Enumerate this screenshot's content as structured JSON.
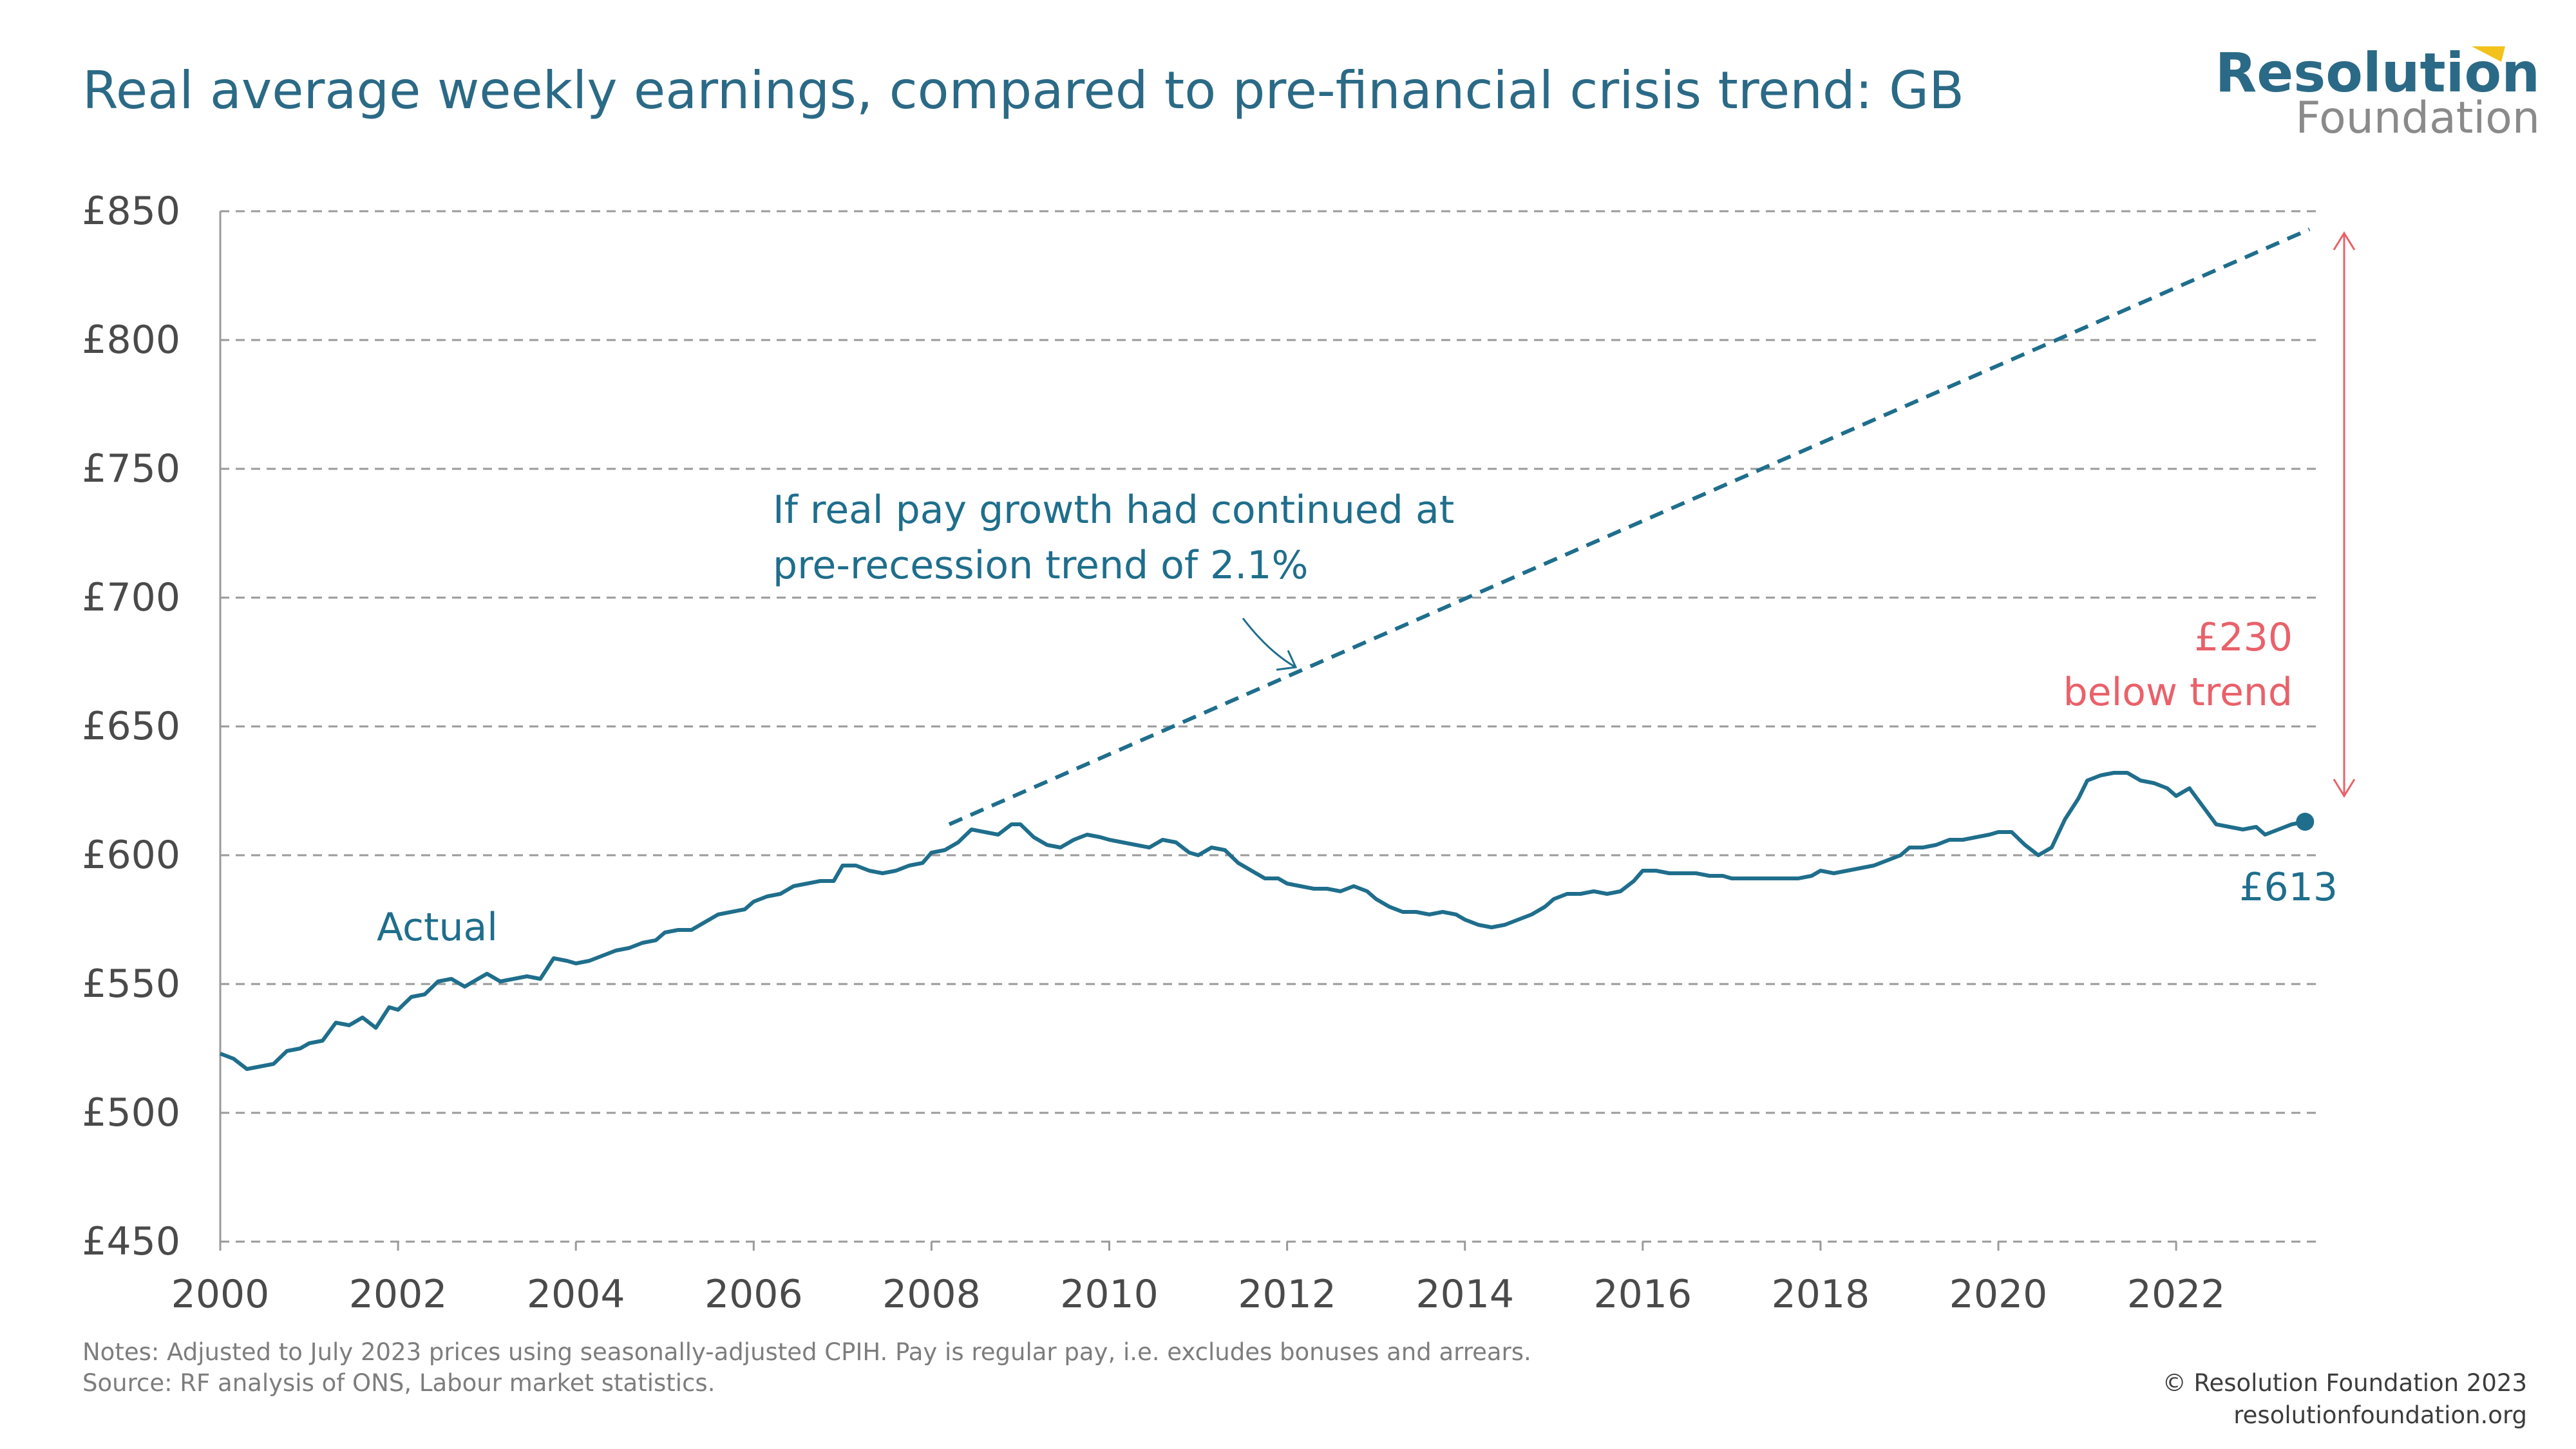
{
  "title": "Real average weekly earnings, compared to pre-financial crisis trend: GB",
  "logo": {
    "line1": "Resolution",
    "line2": "Foundation"
  },
  "colors": {
    "actual": "#1f6e8c",
    "trend": "#1f6e8c",
    "gap": "#e9616a",
    "text": "#2b6a86",
    "grid": "#9a9a9a"
  },
  "chart_data": {
    "type": "line",
    "x_ticks": [
      2000,
      2002,
      2004,
      2006,
      2008,
      2010,
      2012,
      2014,
      2016,
      2018,
      2020,
      2022
    ],
    "x_tick_labels": [
      "2000",
      "2002",
      "2004",
      "2006",
      "2008",
      "2010",
      "2012",
      "2014",
      "2016",
      "2018",
      "2020",
      "2022"
    ],
    "y_ticks": [
      450,
      500,
      550,
      600,
      650,
      700,
      750,
      800,
      850
    ],
    "y_tick_labels": [
      "£450",
      "£500",
      "£550",
      "£600",
      "£650",
      "£700",
      "£750",
      "£800",
      "£850"
    ],
    "xlim": [
      2000,
      2023.6
    ],
    "ylim": [
      450,
      850
    ],
    "grid": "horizontal-dashed",
    "series": [
      {
        "name": "Actual",
        "style": "solid",
        "points": [
          [
            2000.0,
            523
          ],
          [
            2000.15,
            521
          ],
          [
            2000.3,
            517
          ],
          [
            2000.45,
            518
          ],
          [
            2000.6,
            519
          ],
          [
            2000.75,
            524
          ],
          [
            2000.9,
            525
          ],
          [
            2001.0,
            527
          ],
          [
            2001.15,
            528
          ],
          [
            2001.3,
            535
          ],
          [
            2001.45,
            534
          ],
          [
            2001.6,
            537
          ],
          [
            2001.75,
            533
          ],
          [
            2001.9,
            541
          ],
          [
            2002.0,
            540
          ],
          [
            2002.15,
            545
          ],
          [
            2002.3,
            546
          ],
          [
            2002.45,
            551
          ],
          [
            2002.6,
            552
          ],
          [
            2002.75,
            549
          ],
          [
            2002.9,
            552
          ],
          [
            2003.0,
            554
          ],
          [
            2003.15,
            551
          ],
          [
            2003.3,
            552
          ],
          [
            2003.45,
            553
          ],
          [
            2003.6,
            552
          ],
          [
            2003.75,
            560
          ],
          [
            2003.9,
            559
          ],
          [
            2004.0,
            558
          ],
          [
            2004.15,
            559
          ],
          [
            2004.3,
            561
          ],
          [
            2004.45,
            563
          ],
          [
            2004.6,
            564
          ],
          [
            2004.75,
            566
          ],
          [
            2004.9,
            567
          ],
          [
            2005.0,
            570
          ],
          [
            2005.15,
            571
          ],
          [
            2005.3,
            571
          ],
          [
            2005.45,
            574
          ],
          [
            2005.6,
            577
          ],
          [
            2005.75,
            578
          ],
          [
            2005.9,
            579
          ],
          [
            2006.0,
            582
          ],
          [
            2006.15,
            584
          ],
          [
            2006.3,
            585
          ],
          [
            2006.45,
            588
          ],
          [
            2006.6,
            589
          ],
          [
            2006.75,
            590
          ],
          [
            2006.9,
            590
          ],
          [
            2007.0,
            596
          ],
          [
            2007.15,
            596
          ],
          [
            2007.3,
            594
          ],
          [
            2007.45,
            593
          ],
          [
            2007.6,
            594
          ],
          [
            2007.75,
            596
          ],
          [
            2007.9,
            597
          ],
          [
            2008.0,
            601
          ],
          [
            2008.15,
            602
          ],
          [
            2008.3,
            605
          ],
          [
            2008.45,
            610
          ],
          [
            2008.6,
            609
          ],
          [
            2008.75,
            608
          ],
          [
            2008.9,
            612
          ],
          [
            2009.0,
            612
          ],
          [
            2009.15,
            607
          ],
          [
            2009.3,
            604
          ],
          [
            2009.45,
            603
          ],
          [
            2009.6,
            606
          ],
          [
            2009.75,
            608
          ],
          [
            2009.9,
            607
          ],
          [
            2010.0,
            606
          ],
          [
            2010.15,
            605
          ],
          [
            2010.3,
            604
          ],
          [
            2010.45,
            603
          ],
          [
            2010.6,
            606
          ],
          [
            2010.75,
            605
          ],
          [
            2010.9,
            601
          ],
          [
            2011.0,
            600
          ],
          [
            2011.15,
            603
          ],
          [
            2011.3,
            602
          ],
          [
            2011.45,
            597
          ],
          [
            2011.6,
            594
          ],
          [
            2011.75,
            591
          ],
          [
            2011.9,
            591
          ],
          [
            2012.0,
            589
          ],
          [
            2012.15,
            588
          ],
          [
            2012.3,
            587
          ],
          [
            2012.45,
            587
          ],
          [
            2012.6,
            586
          ],
          [
            2012.75,
            588
          ],
          [
            2012.9,
            586
          ],
          [
            2013.0,
            583
          ],
          [
            2013.15,
            580
          ],
          [
            2013.3,
            578
          ],
          [
            2013.45,
            578
          ],
          [
            2013.6,
            577
          ],
          [
            2013.75,
            578
          ],
          [
            2013.9,
            577
          ],
          [
            2014.0,
            575
          ],
          [
            2014.15,
            573
          ],
          [
            2014.3,
            572
          ],
          [
            2014.45,
            573
          ],
          [
            2014.6,
            575
          ],
          [
            2014.75,
            577
          ],
          [
            2014.9,
            580
          ],
          [
            2015.0,
            583
          ],
          [
            2015.15,
            585
          ],
          [
            2015.3,
            585
          ],
          [
            2015.45,
            586
          ],
          [
            2015.6,
            585
          ],
          [
            2015.75,
            586
          ],
          [
            2015.9,
            590
          ],
          [
            2016.0,
            594
          ],
          [
            2016.15,
            594
          ],
          [
            2016.3,
            593
          ],
          [
            2016.45,
            593
          ],
          [
            2016.6,
            593
          ],
          [
            2016.75,
            592
          ],
          [
            2016.9,
            592
          ],
          [
            2017.0,
            591
          ],
          [
            2017.15,
            591
          ],
          [
            2017.3,
            591
          ],
          [
            2017.45,
            591
          ],
          [
            2017.6,
            591
          ],
          [
            2017.75,
            591
          ],
          [
            2017.9,
            592
          ],
          [
            2018.0,
            594
          ],
          [
            2018.15,
            593
          ],
          [
            2018.3,
            594
          ],
          [
            2018.45,
            595
          ],
          [
            2018.6,
            596
          ],
          [
            2018.75,
            598
          ],
          [
            2018.9,
            600
          ],
          [
            2019.0,
            603
          ],
          [
            2019.15,
            603
          ],
          [
            2019.3,
            604
          ],
          [
            2019.45,
            606
          ],
          [
            2019.6,
            606
          ],
          [
            2019.75,
            607
          ],
          [
            2019.9,
            608
          ],
          [
            2020.0,
            609
          ],
          [
            2020.15,
            609
          ],
          [
            2020.3,
            604
          ],
          [
            2020.45,
            600
          ],
          [
            2020.6,
            603
          ],
          [
            2020.75,
            614
          ],
          [
            2020.9,
            622
          ],
          [
            2021.0,
            629
          ],
          [
            2021.15,
            631
          ],
          [
            2021.3,
            632
          ],
          [
            2021.45,
            632
          ],
          [
            2021.6,
            629
          ],
          [
            2021.75,
            628
          ],
          [
            2021.9,
            626
          ],
          [
            2022.0,
            623
          ],
          [
            2022.15,
            626
          ],
          [
            2022.3,
            619
          ],
          [
            2022.45,
            612
          ],
          [
            2022.6,
            611
          ],
          [
            2022.75,
            610
          ],
          [
            2022.9,
            611
          ],
          [
            2023.0,
            608
          ],
          [
            2023.15,
            610
          ],
          [
            2023.3,
            612
          ],
          [
            2023.45,
            613
          ]
        ]
      },
      {
        "name": "Pre-recession trend",
        "style": "dashed",
        "points": [
          [
            2008.2,
            612
          ],
          [
            2023.5,
            843
          ]
        ]
      }
    ],
    "annotations": {
      "actual_label": "Actual",
      "trend_label_line1": "If real pay growth had continued at",
      "trend_label_line2": "pre-recession trend of 2.1%",
      "gap_label_line1": "£230",
      "gap_label_line2": "below trend",
      "end_value_label": "£613",
      "end_value": 613,
      "gap_range": [
        613,
        843
      ]
    }
  },
  "notes": {
    "line1": "Notes: Adjusted to July 2023 prices using seasonally-adjusted CPIH. Pay is regular pay, i.e. excludes bonuses and arrears.",
    "line2": "Source: RF analysis of ONS, Labour market statistics."
  },
  "credit": {
    "line1": "© Resolution Foundation 2023",
    "line2": "resolutionfoundation.org"
  }
}
